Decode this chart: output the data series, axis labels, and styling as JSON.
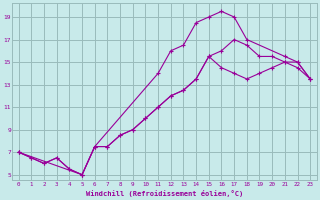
{
  "xlabel": "Windchill (Refroidissement éolien,°C)",
  "bg_color": "#c8eaea",
  "line_color": "#990099",
  "grid_color": "#99bbbb",
  "xmin": 0,
  "xmax": 23,
  "ymin": 5,
  "ymax": 20,
  "xticks": [
    0,
    1,
    2,
    3,
    4,
    5,
    6,
    7,
    8,
    9,
    10,
    11,
    12,
    13,
    14,
    15,
    16,
    17,
    18,
    19,
    20,
    21,
    22,
    23
  ],
  "yticks": [
    5,
    7,
    9,
    11,
    13,
    15,
    17,
    19
  ],
  "line1_x": [
    0,
    1,
    2,
    3,
    4,
    5,
    6,
    7,
    8,
    9,
    10,
    11,
    12,
    13,
    14,
    15,
    16,
    17,
    18,
    19,
    20,
    21,
    22,
    23
  ],
  "line1_y": [
    7.0,
    6.5,
    6.0,
    6.5,
    5.5,
    5.0,
    7.5,
    7.5,
    8.5,
    9.0,
    10.0,
    11.0,
    12.0,
    12.5,
    13.5,
    15.5,
    16.0,
    17.0,
    16.5,
    15.5,
    15.5,
    15.0,
    14.5,
    13.5
  ],
  "line2_x": [
    0,
    1,
    2,
    3,
    4,
    5,
    6,
    11,
    12,
    13,
    14,
    15,
    16,
    17,
    18,
    21,
    22,
    23
  ],
  "line2_y": [
    7.0,
    6.5,
    6.0,
    6.5,
    5.5,
    5.0,
    7.5,
    14.0,
    16.0,
    16.5,
    18.5,
    19.0,
    19.5,
    19.0,
    17.0,
    15.5,
    15.0,
    13.5
  ],
  "line3_x": [
    0,
    5,
    6,
    7,
    8,
    9,
    10,
    11,
    12,
    13,
    14,
    15,
    16,
    17,
    18,
    19,
    20,
    21,
    22,
    23
  ],
  "line3_y": [
    7.0,
    5.0,
    7.5,
    7.5,
    8.5,
    9.0,
    10.0,
    11.0,
    12.0,
    12.5,
    13.5,
    15.5,
    14.5,
    14.0,
    13.5,
    14.0,
    14.5,
    15.0,
    15.0,
    13.5
  ]
}
